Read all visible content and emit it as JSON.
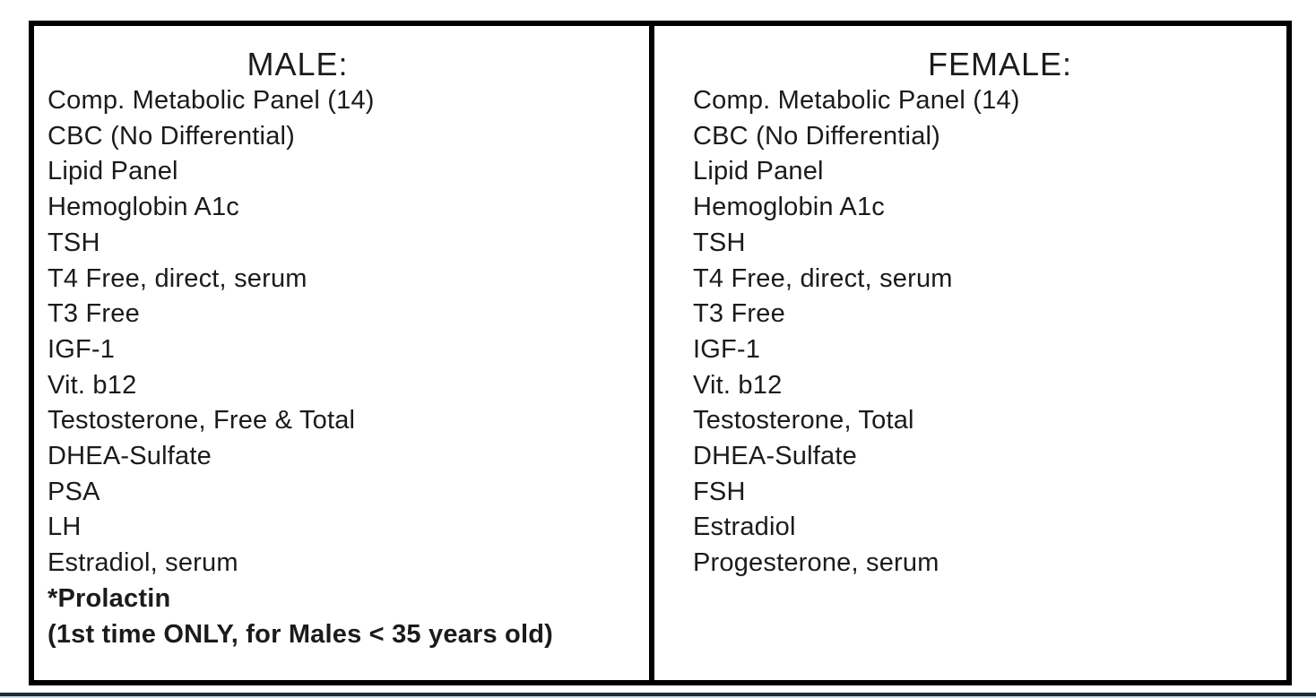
{
  "table": {
    "columns": [
      {
        "header": "MALE:",
        "items": [
          {
            "text": "Comp. Metabolic Panel (14)",
            "bold": false
          },
          {
            "text": "CBC (No Differential)",
            "bold": false
          },
          {
            "text": "Lipid Panel",
            "bold": false
          },
          {
            "text": "Hemoglobin A1c",
            "bold": false
          },
          {
            "text": "TSH",
            "bold": false
          },
          {
            "text": "T4 Free, direct, serum",
            "bold": false
          },
          {
            "text": "T3 Free",
            "bold": false
          },
          {
            "text": "IGF-1",
            "bold": false
          },
          {
            "text": "Vit. b12",
            "bold": false
          },
          {
            "text": "Testosterone, Free & Total",
            "bold": false
          },
          {
            "text": "DHEA-Sulfate",
            "bold": false
          },
          {
            "text": "PSA",
            "bold": false
          },
          {
            "text": "LH",
            "bold": false
          },
          {
            "text": "Estradiol, serum",
            "bold": false
          },
          {
            "text": "*Prolactin",
            "bold": true
          },
          {
            "text": "(1st time ONLY, for Males < 35 years old)",
            "bold": true
          }
        ]
      },
      {
        "header": "FEMALE:",
        "items": [
          {
            "text": "Comp. Metabolic Panel (14)",
            "bold": false
          },
          {
            "text": "CBC (No Differential)",
            "bold": false
          },
          {
            "text": "Lipid Panel",
            "bold": false
          },
          {
            "text": "Hemoglobin A1c",
            "bold": false
          },
          {
            "text": "TSH",
            "bold": false
          },
          {
            "text": "T4 Free, direct, serum",
            "bold": false
          },
          {
            "text": "T3 Free",
            "bold": false
          },
          {
            "text": "IGF-1",
            "bold": false
          },
          {
            "text": "Vit. b12",
            "bold": false
          },
          {
            "text": "Testosterone, Total",
            "bold": false
          },
          {
            "text": "DHEA-Sulfate",
            "bold": false
          },
          {
            "text": "FSH",
            "bold": false
          },
          {
            "text": "Estradiol",
            "bold": false
          },
          {
            "text": "Progesterone, serum",
            "bold": false
          }
        ]
      }
    ]
  },
  "colors": {
    "table_border": "#000000",
    "text": "#1b1b1b",
    "footer_line": "#132e40",
    "footer_band": "#ccd9e0"
  }
}
